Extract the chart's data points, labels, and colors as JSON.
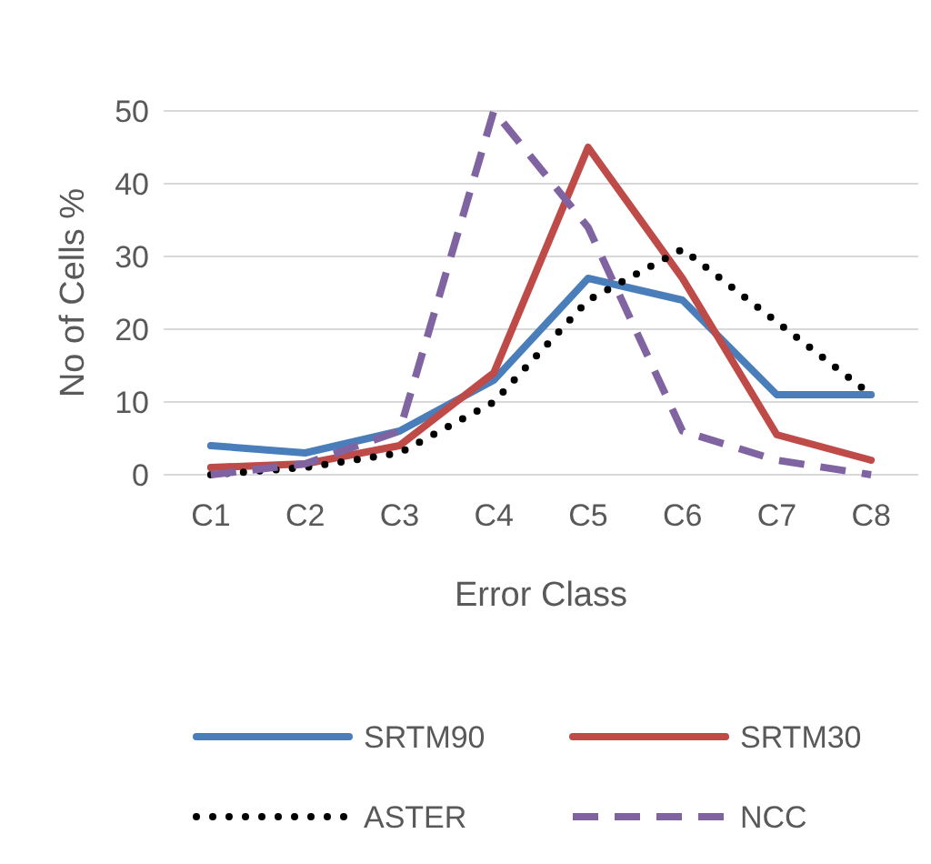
{
  "chart_data": {
    "type": "line",
    "xlabel": "Error Class",
    "ylabel": "No of Cells %",
    "categories": [
      "C1",
      "C2",
      "C3",
      "C4",
      "C5",
      "C6",
      "C7",
      "C8"
    ],
    "series": [
      {
        "name": "SRTM90",
        "color": "#4a7ebb",
        "values": [
          4,
          3,
          6,
          13,
          27,
          24,
          11,
          11
        ],
        "line_style": "solid"
      },
      {
        "name": "SRTM30",
        "color": "#be4b48",
        "values": [
          1,
          1.5,
          4,
          14,
          45,
          27,
          5.5,
          2
        ],
        "line_style": "solid"
      },
      {
        "name": "ASTER",
        "color": "#000000",
        "values": [
          0,
          1,
          3,
          10,
          24,
          31,
          21,
          11
        ],
        "line_style": "dotted"
      },
      {
        "name": "NCC",
        "color": "#8064a2",
        "values": [
          0,
          1.5,
          6,
          50,
          34,
          6,
          2,
          0
        ],
        "line_style": "dashed"
      }
    ],
    "ylim": [
      0,
      50
    ],
    "yticks": [
      0,
      10,
      20,
      30,
      40,
      50
    ],
    "grid": "y",
    "legend": "bottom",
    "marker": "none"
  }
}
